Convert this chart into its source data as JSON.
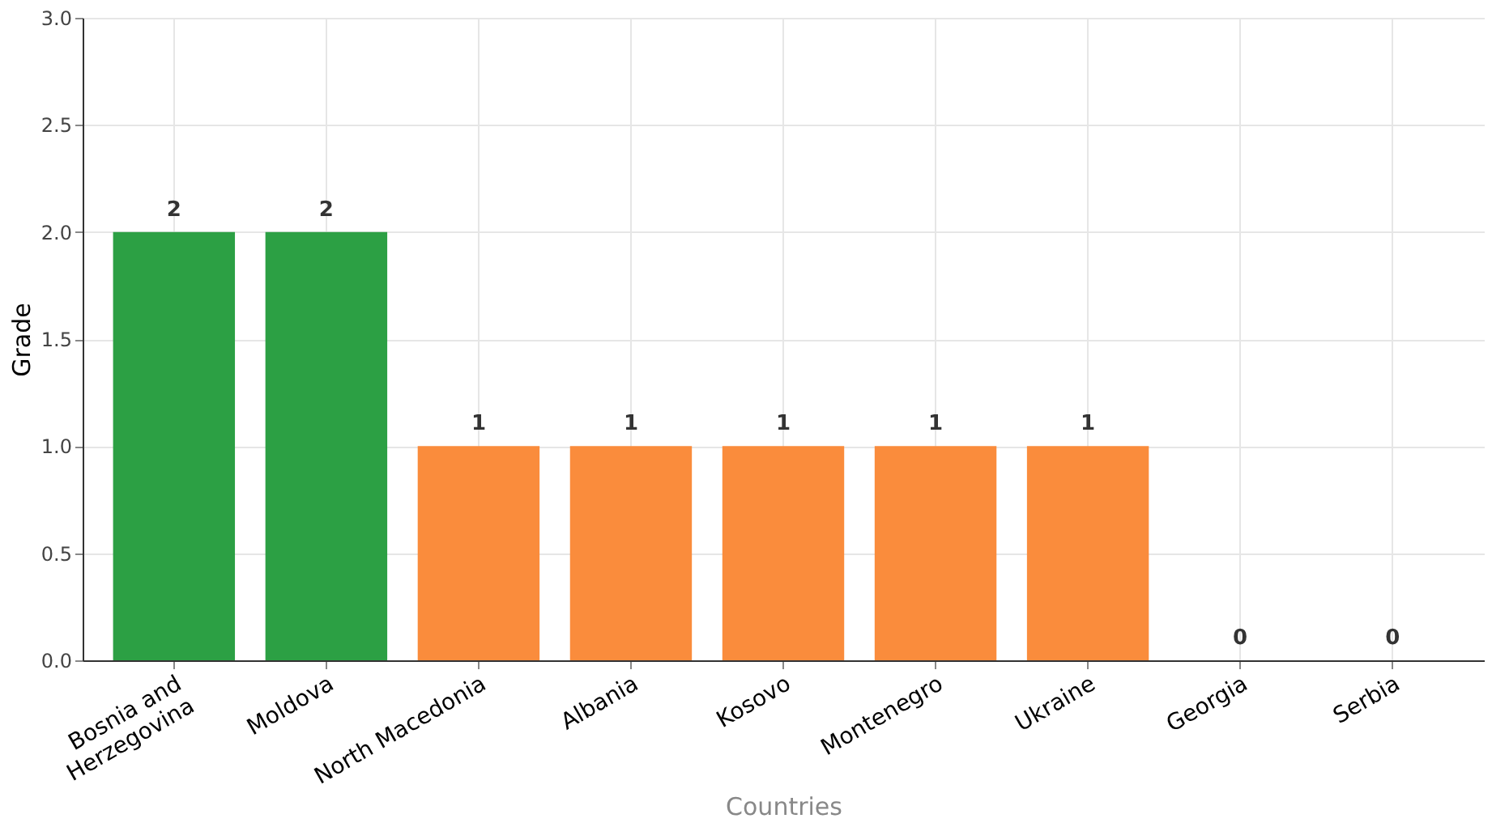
{
  "chart_data": {
    "type": "bar",
    "xlabel": "Countries",
    "ylabel": "Grade",
    "categories": [
      "Bosnia and Herzegovina",
      "Moldova",
      "North Macedonia",
      "Albania",
      "Kosovo",
      "Montenegro",
      "Ukraine",
      "Georgia",
      "Serbia"
    ],
    "values": [
      2,
      2,
      1,
      1,
      1,
      1,
      1,
      0,
      0
    ],
    "colors": [
      "#2ca044",
      "#2ca044",
      "#fa8c3c",
      "#fa8c3c",
      "#fa8c3c",
      "#fa8c3c",
      "#fa8c3c",
      "#fa8c3c",
      "#fa8c3c"
    ],
    "ylim": [
      0,
      3
    ],
    "yticks": [
      {
        "value": 0,
        "label": "0.0"
      },
      {
        "value": 0.5,
        "label": "0.5"
      },
      {
        "value": 1,
        "label": "1.0"
      },
      {
        "value": 1.5,
        "label": "1.5"
      },
      {
        "value": 2,
        "label": "2.0"
      },
      {
        "value": 2.5,
        "label": "2.5"
      },
      {
        "value": 3,
        "label": "3.0"
      }
    ],
    "grid": true,
    "data_labels": true
  }
}
